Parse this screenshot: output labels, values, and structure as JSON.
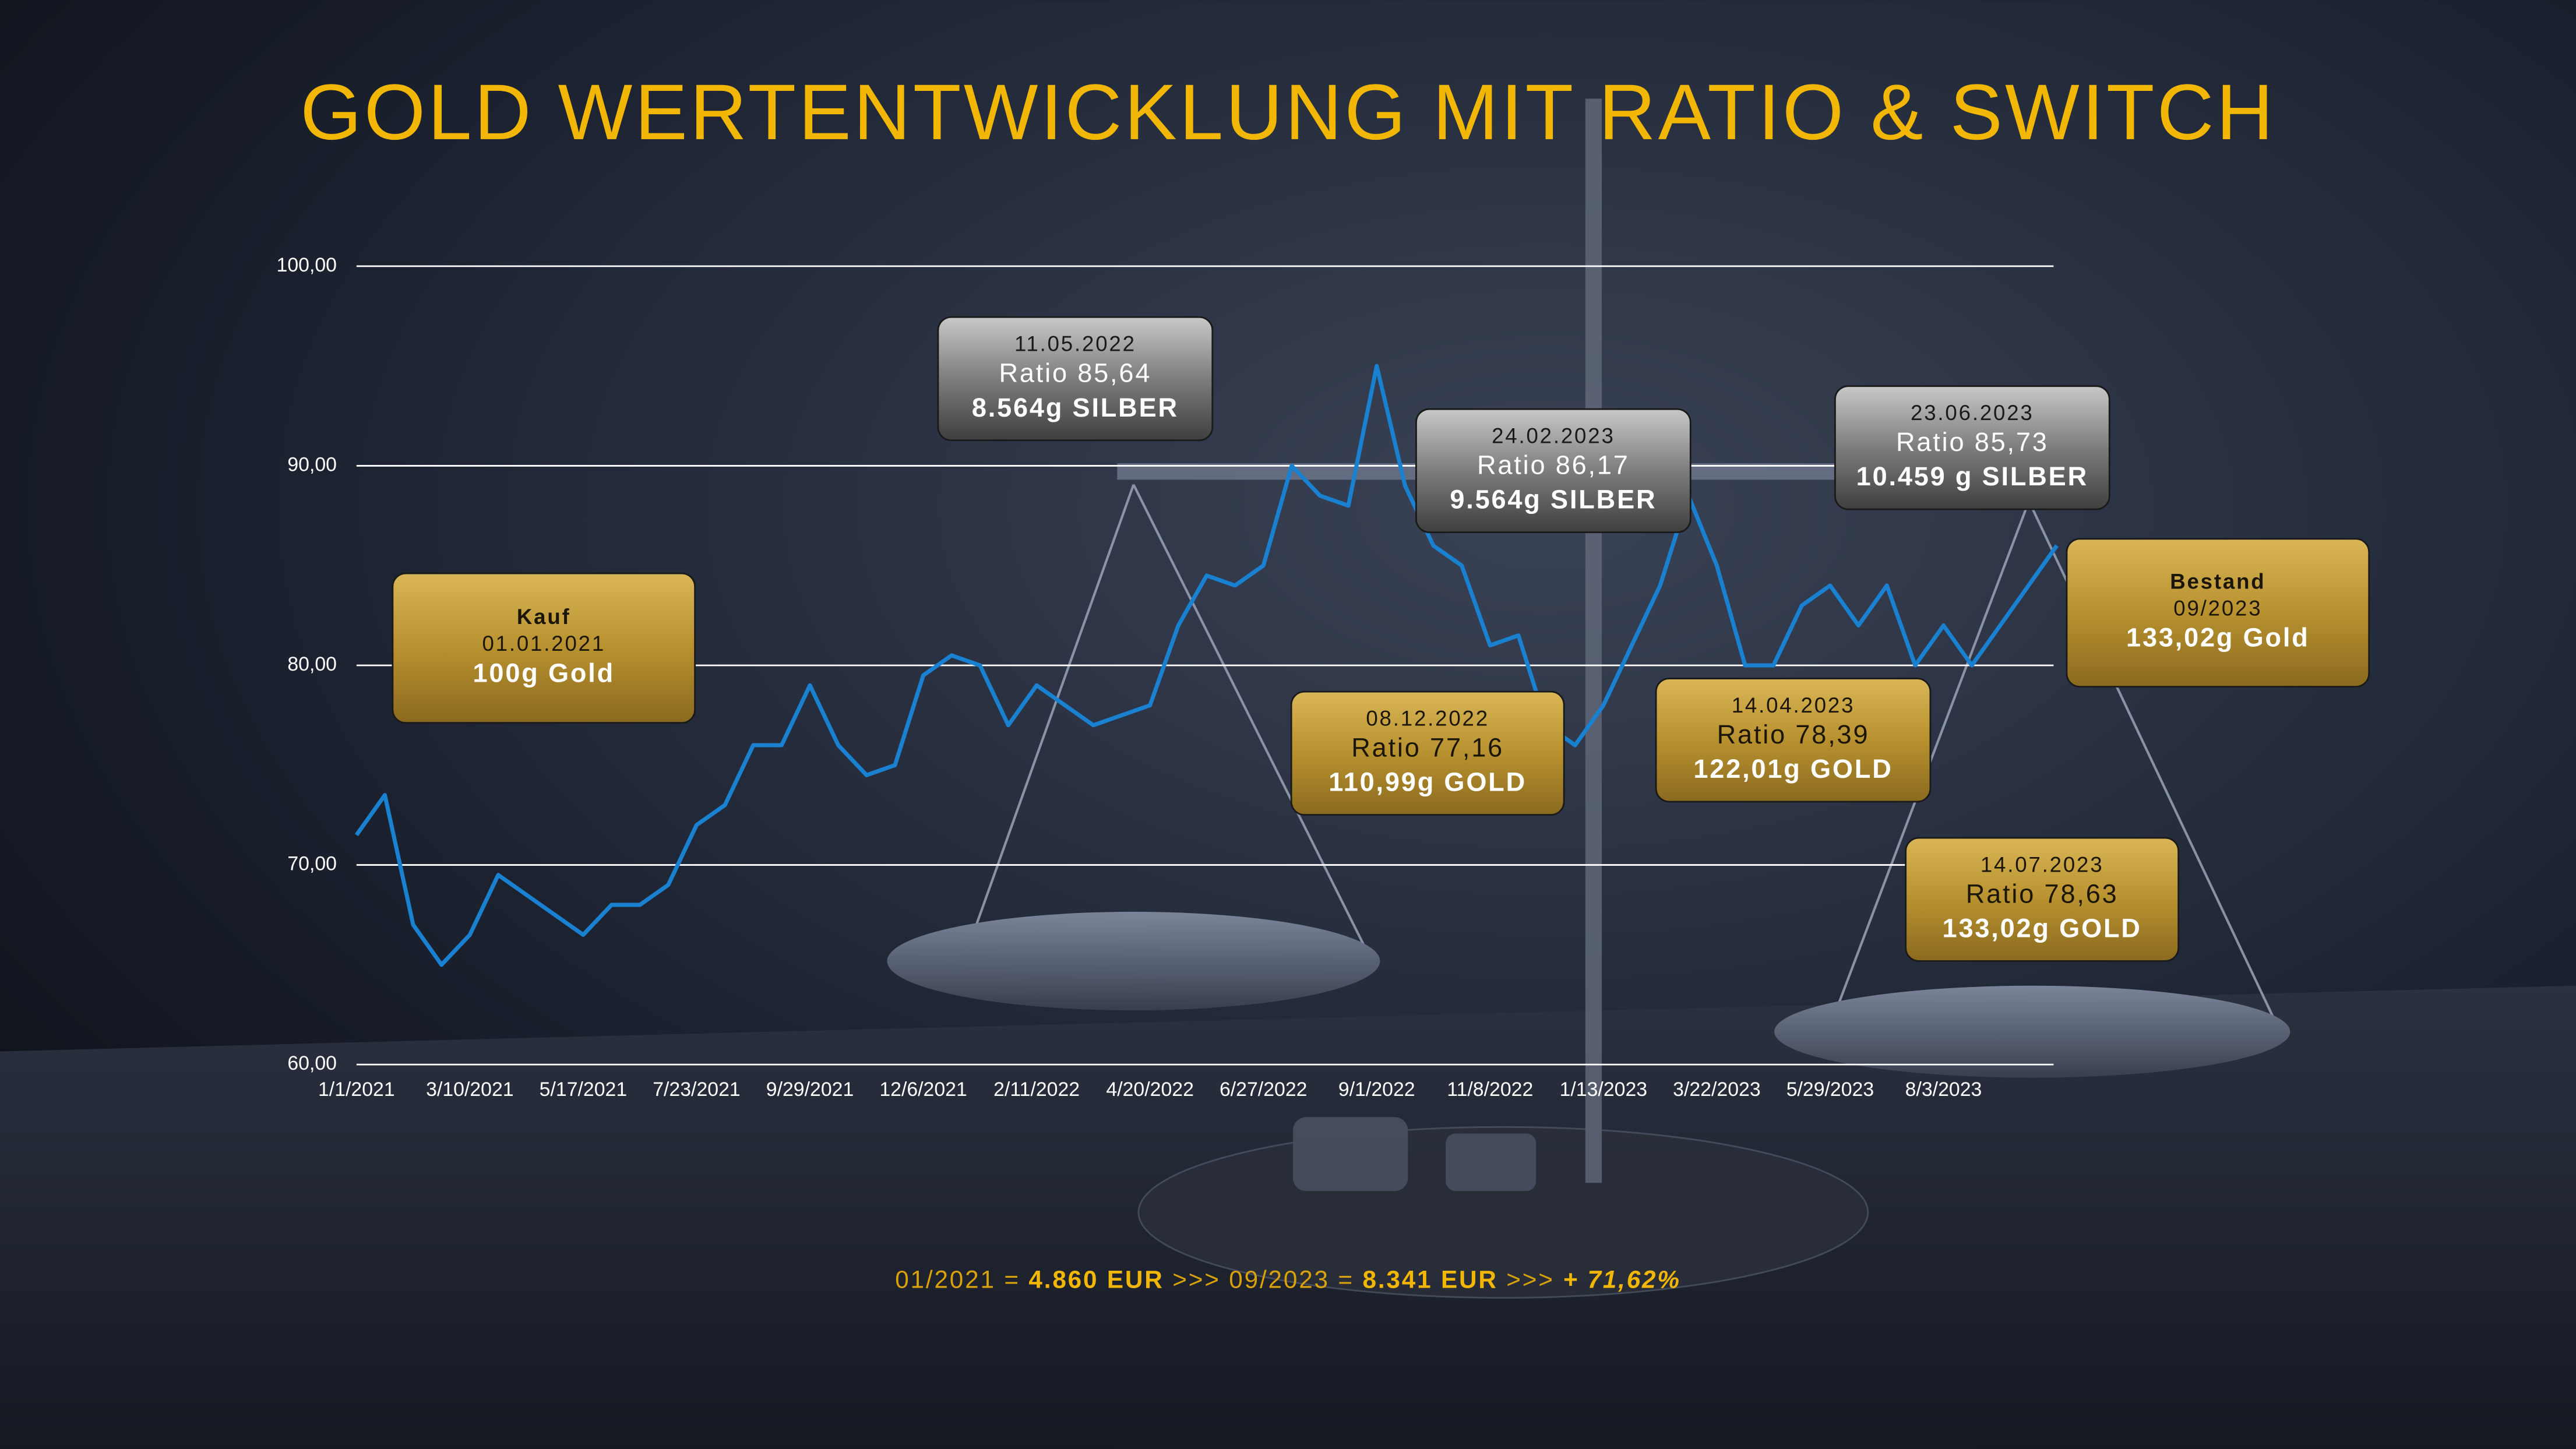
{
  "chart_data": {
    "type": "line",
    "title": "GOLD WERTENTWICKLUNG MIT RATIO & SWITCH",
    "categories": [
      "1/1/2021",
      null,
      null,
      null,
      "3/10/2021",
      null,
      null,
      null,
      "5/17/2021",
      null,
      null,
      null,
      "7/23/2021",
      null,
      null,
      null,
      "9/29/2021",
      null,
      null,
      null,
      "12/6/2021",
      null,
      null,
      null,
      "2/11/2022",
      null,
      null,
      null,
      "4/20/2022",
      null,
      null,
      null,
      "6/27/2022",
      null,
      null,
      null,
      "9/1/2022",
      null,
      null,
      null,
      "11/8/2022",
      null,
      null,
      null,
      "1/13/2023",
      null,
      null,
      null,
      "3/22/2023",
      null,
      null,
      null,
      "5/29/2023",
      null,
      null,
      null,
      "8/3/2023",
      null,
      null,
      null,
      null
    ],
    "values": [
      71.5,
      73.5,
      67,
      65,
      66.5,
      69.5,
      68.5,
      67.5,
      66.5,
      68,
      68,
      69,
      72,
      73,
      76,
      76,
      79,
      76,
      74.5,
      75,
      79.5,
      80.5,
      80,
      77,
      79,
      78,
      77,
      77.5,
      78,
      82,
      84.5,
      84,
      85,
      90,
      88.5,
      88,
      95,
      89,
      86,
      85,
      81,
      81.5,
      77,
      76,
      78,
      81,
      84,
      88.5,
      85,
      80,
      80,
      83,
      84,
      82,
      84,
      80,
      82,
      80,
      82,
      84,
      86
    ],
    "color": "#1a80d0",
    "ylim": [
      60,
      100
    ],
    "yticks": [
      {
        "value": 60,
        "label": "60,00"
      },
      {
        "value": 70,
        "label": "70,00"
      },
      {
        "value": 80,
        "label": "80,00"
      },
      {
        "value": 90,
        "label": "90,00"
      },
      {
        "value": 100,
        "label": "100,00"
      }
    ],
    "grid": true,
    "annotations": [
      [
        "Kauf",
        "01.01.2021",
        "100g Gold"
      ],
      [
        "11.05.2022",
        "Ratio 85,64",
        "8.564g SILBER"
      ],
      [
        "08.12.2022",
        "Ratio 77,16",
        "110,99g GOLD"
      ],
      [
        "24.02.2023",
        "Ratio 86,17",
        "9.564g SILBER"
      ],
      [
        "14.04.2023",
        "Ratio 78,39",
        "122,01g GOLD"
      ],
      [
        "23.06.2023",
        "Ratio 85,73",
        "10.459 g SILBER"
      ],
      [
        "Bestand",
        "09/2023",
        "133,02g Gold"
      ],
      [
        "14.07.2023",
        "Ratio 78,63",
        "133,02g GOLD"
      ]
    ],
    "footer": [
      "01/2021 = ",
      "4.860 EUR",
      " >>> 09/2023 = ",
      "8.341 EUR",
      " >>> ",
      "+ 71,62%"
    ]
  }
}
